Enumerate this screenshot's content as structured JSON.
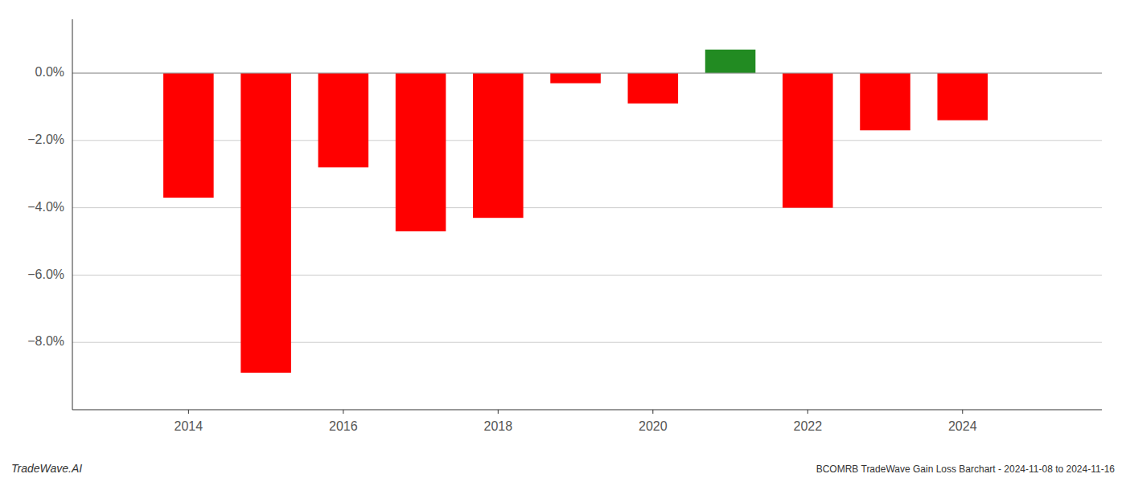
{
  "chart_data": {
    "type": "bar",
    "x": [
      2014,
      2015,
      2016,
      2017,
      2018,
      2019,
      2020,
      2021,
      2022,
      2023,
      2024
    ],
    "values": [
      -0.037,
      -0.089,
      -0.028,
      -0.047,
      -0.043,
      -0.003,
      -0.009,
      0.007,
      -0.04,
      -0.017,
      -0.014
    ],
    "colors": [
      "#ff0000",
      "#ff0000",
      "#ff0000",
      "#ff0000",
      "#ff0000",
      "#ff0000",
      "#ff0000",
      "#228B22",
      "#ff0000",
      "#ff0000",
      "#ff0000"
    ],
    "xlim": [
      2012.5,
      2025.8
    ],
    "xticks": [
      2014,
      2016,
      2018,
      2020,
      2022,
      2024
    ],
    "ylim": [
      -0.1,
      0.016
    ],
    "yticks": [
      {
        "value": 0.0,
        "label": "0.0%"
      },
      {
        "value": -0.02,
        "label": "−2.0%"
      },
      {
        "value": -0.04,
        "label": "−4.0%"
      },
      {
        "value": -0.06,
        "label": "−6.0%"
      },
      {
        "value": -0.08,
        "label": "−8.0%"
      }
    ],
    "grid": true,
    "annotations": [
      "TradeWave.AI",
      "BCOMRB TradeWave Gain Loss Barchart - 2024-11-08 to 2024-11-16"
    ]
  }
}
